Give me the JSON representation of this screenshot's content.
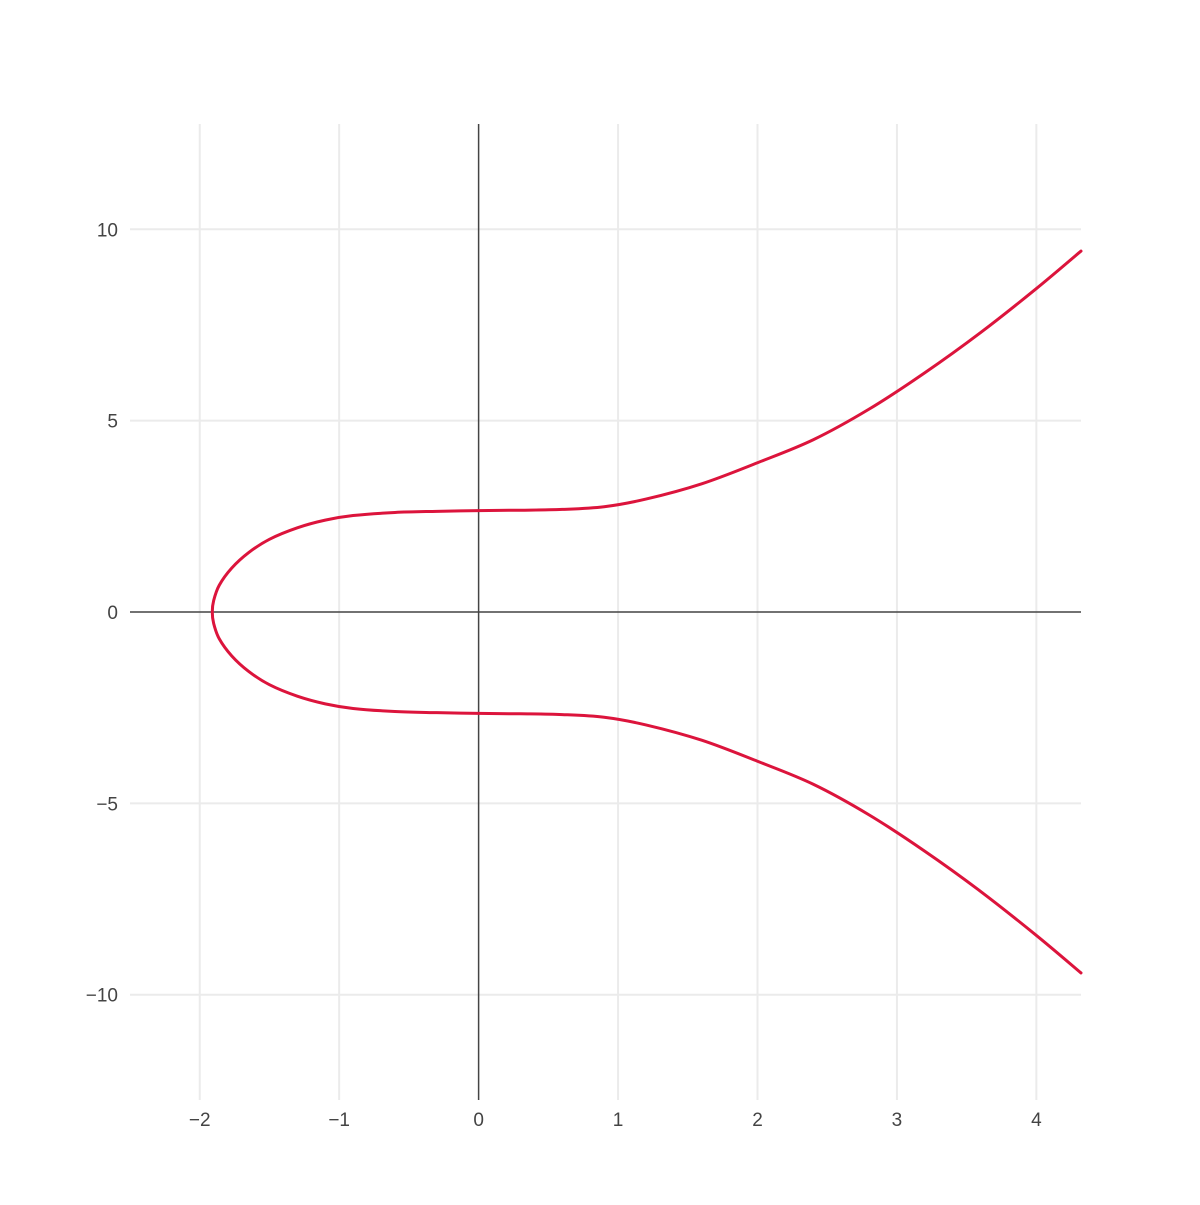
{
  "chart_data": {
    "type": "line",
    "title": "",
    "xlabel": "",
    "ylabel": "",
    "xlim": [
      -2.5,
      4.32
    ],
    "ylim": [
      -12.75,
      12.75
    ],
    "grid": true,
    "zerolines": true,
    "colors": {
      "curve": "#dc143c",
      "grid": "#ebebeb",
      "zeroline": "#444444",
      "tick_text": "#444444"
    },
    "x_ticks": [
      {
        "value": -2,
        "label": "−2"
      },
      {
        "value": -1,
        "label": "−1"
      },
      {
        "value": 0,
        "label": "0"
      },
      {
        "value": 1,
        "label": "1"
      },
      {
        "value": 2,
        "label": "2"
      },
      {
        "value": 3,
        "label": "3"
      },
      {
        "value": 4,
        "label": "4"
      }
    ],
    "y_ticks": [
      {
        "value": -10,
        "label": "−10"
      },
      {
        "value": -5,
        "label": "−5"
      },
      {
        "value": 0,
        "label": "0"
      },
      {
        "value": 5,
        "label": "5"
      },
      {
        "value": 10,
        "label": "10"
      }
    ],
    "series": [
      {
        "points": [
          [
            4.32,
            9.43
          ],
          [
            4.0,
            8.45
          ],
          [
            3.6,
            7.3
          ],
          [
            3.2,
            6.25
          ],
          [
            2.8,
            5.3
          ],
          [
            2.4,
            4.5
          ],
          [
            2.0,
            3.9
          ],
          [
            1.6,
            3.35
          ],
          [
            1.2,
            2.95
          ],
          [
            0.9,
            2.75
          ],
          [
            0.6,
            2.68
          ],
          [
            0.3,
            2.66
          ],
          [
            0.0,
            2.65
          ],
          [
            -0.3,
            2.63
          ],
          [
            -0.6,
            2.6
          ],
          [
            -0.9,
            2.52
          ],
          [
            -1.1,
            2.4
          ],
          [
            -1.3,
            2.2
          ],
          [
            -1.5,
            1.9
          ],
          [
            -1.65,
            1.55
          ],
          [
            -1.77,
            1.15
          ],
          [
            -1.86,
            0.7
          ],
          [
            -1.9,
            0.3
          ],
          [
            -1.91,
            0.0
          ],
          [
            -1.9,
            -0.3
          ],
          [
            -1.86,
            -0.7
          ],
          [
            -1.77,
            -1.15
          ],
          [
            -1.65,
            -1.55
          ],
          [
            -1.5,
            -1.9
          ],
          [
            -1.3,
            -2.2
          ],
          [
            -1.1,
            -2.4
          ],
          [
            -0.9,
            -2.52
          ],
          [
            -0.6,
            -2.6
          ],
          [
            -0.3,
            -2.63
          ],
          [
            0.0,
            -2.65
          ],
          [
            0.3,
            -2.66
          ],
          [
            0.6,
            -2.68
          ],
          [
            0.9,
            -2.75
          ],
          [
            1.2,
            -2.95
          ],
          [
            1.6,
            -3.35
          ],
          [
            2.0,
            -3.9
          ],
          [
            2.4,
            -4.5
          ],
          [
            2.8,
            -5.3
          ],
          [
            3.2,
            -6.25
          ],
          [
            3.6,
            -7.3
          ],
          [
            4.0,
            -8.45
          ],
          [
            4.32,
            -9.43
          ]
        ]
      }
    ]
  }
}
